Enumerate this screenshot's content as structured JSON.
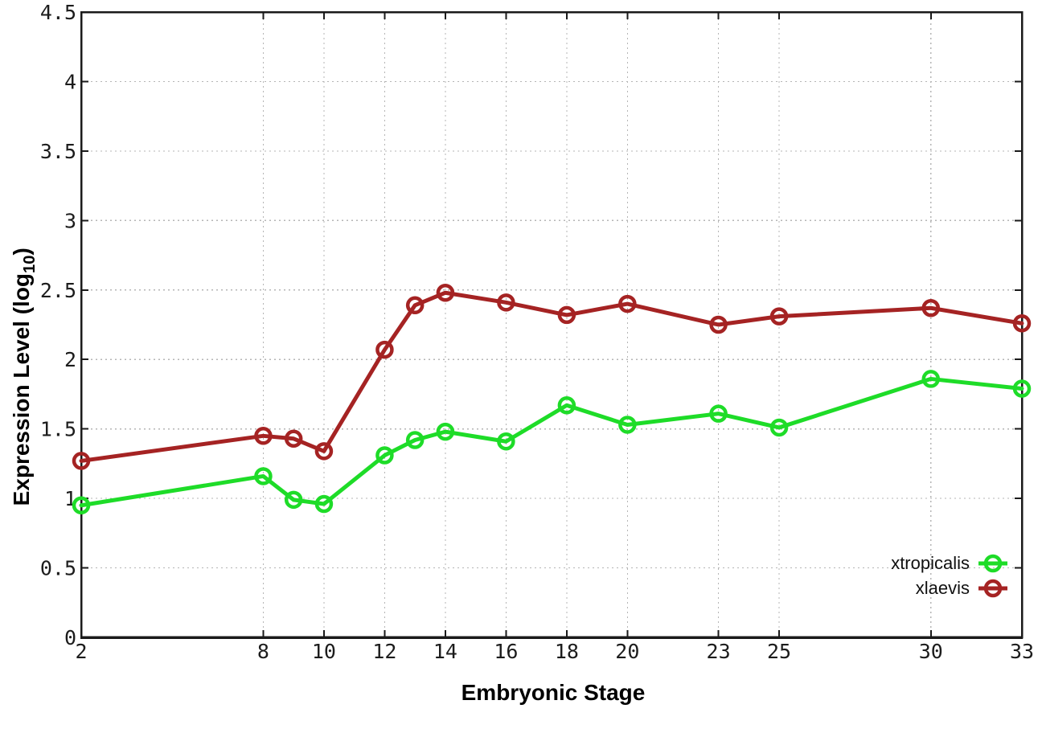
{
  "figure": {
    "background": "#ffffff",
    "xlabel": "Embryonic Stage",
    "ylabel_prefix": "Expression Level (log",
    "ylabel_subscript": "10",
    "ylabel_suffix": ")"
  },
  "chart_data": {
    "type": "line",
    "title": "",
    "xlabel": "Embryonic Stage",
    "ylabel": "Expression Level (log10)",
    "xlim": [
      2,
      33
    ],
    "ylim": [
      0,
      4.5
    ],
    "x_ticks": [
      2,
      8,
      10,
      12,
      14,
      16,
      18,
      20,
      23,
      25,
      30,
      33
    ],
    "y_ticks": [
      0,
      0.5,
      1,
      1.5,
      2,
      2.5,
      3,
      3.5,
      4,
      4.5
    ],
    "grid": true,
    "grid_style": "dotted",
    "legend_position": "bottom-right",
    "marker": "open-circle",
    "x": [
      2,
      8,
      9,
      10,
      12,
      13,
      14,
      16,
      18,
      20,
      23,
      25,
      30,
      33
    ],
    "series": [
      {
        "name": "xtropicalis",
        "color": "#1edc28",
        "values": [
          0.95,
          1.16,
          0.99,
          0.96,
          1.31,
          1.42,
          1.48,
          1.41,
          1.67,
          1.53,
          1.61,
          1.51,
          1.86,
          1.79
        ]
      },
      {
        "name": "xlaevis",
        "color": "#a52323",
        "values": [
          1.27,
          1.45,
          1.43,
          1.34,
          2.07,
          2.39,
          2.48,
          2.41,
          2.32,
          2.4,
          2.25,
          2.31,
          2.37,
          2.26
        ]
      }
    ]
  }
}
